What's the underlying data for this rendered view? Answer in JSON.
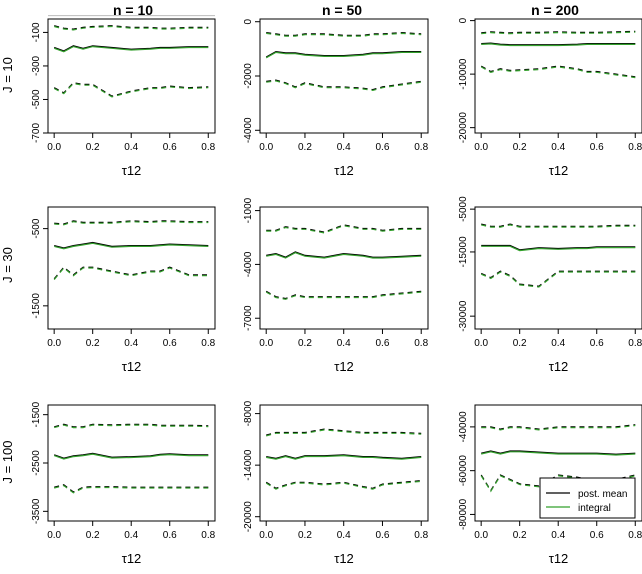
{
  "chart_data": {
    "type": "line",
    "column_titles": [
      "n = 10",
      "n = 50",
      "n = 200"
    ],
    "row_titles": [
      "J = 10",
      "J = 30",
      "J = 100"
    ],
    "xlabel": "τ12",
    "xlim": [
      0,
      0.8
    ],
    "x_ticks": [
      0.0,
      0.2,
      0.4,
      0.6,
      0.8
    ],
    "x_tick_labels": [
      "0.0",
      "0.2",
      "0.4",
      "0.6",
      "0.8"
    ],
    "x": [
      0.0,
      0.05,
      0.1,
      0.15,
      0.2,
      0.3,
      0.4,
      0.5,
      0.55,
      0.6,
      0.7,
      0.8
    ],
    "legend": {
      "position": "bottom-right",
      "entries": [
        {
          "name": "post. mean",
          "color": "#000000"
        },
        {
          "name": "integral",
          "color": "#33a02c"
        }
      ]
    },
    "colors": {
      "post_mean": "#000000",
      "integral": "#33a02c",
      "reference": "#bbbbbb"
    },
    "panels": [
      {
        "row": 0,
        "col": 0,
        "ylim": [
          -700,
          -20
        ],
        "y_ticks": [
          -100,
          -300,
          -500,
          -700
        ],
        "y_tick_labels": [
          "-100",
          "-300",
          "-500",
          "-700"
        ],
        "reference_line": 0,
        "series": {
          "mean": [
            -190,
            -210,
            -180,
            -195,
            -180,
            -190,
            -200,
            -195,
            -190,
            -190,
            -185,
            -185
          ],
          "lower": [
            -430,
            -460,
            -400,
            -410,
            -410,
            -480,
            -450,
            -430,
            -430,
            -420,
            -430,
            -425
          ],
          "upper": [
            -60,
            -75,
            -80,
            -70,
            -65,
            -60,
            -70,
            -70,
            -75,
            -75,
            -70,
            -70
          ]
        }
      },
      {
        "row": 0,
        "col": 1,
        "ylim": [
          -4100,
          100
        ],
        "y_ticks": [
          0,
          -2000,
          -4000
        ],
        "y_tick_labels": [
          "0",
          "-2000",
          "-4000"
        ],
        "series": {
          "mean": [
            -1300,
            -1100,
            -1150,
            -1150,
            -1200,
            -1250,
            -1250,
            -1200,
            -1150,
            -1150,
            -1100,
            -1100
          ],
          "lower": [
            -2200,
            -2150,
            -2250,
            -2400,
            -2250,
            -2400,
            -2400,
            -2450,
            -2500,
            -2400,
            -2300,
            -2200
          ],
          "upper": [
            -400,
            -450,
            -500,
            -500,
            -450,
            -450,
            -500,
            -500,
            -450,
            -450,
            -400,
            -450
          ]
        }
      },
      {
        "row": 0,
        "col": 2,
        "ylim": [
          -21000,
          300
        ],
        "y_ticks": [
          0,
          -10000,
          -20000
        ],
        "y_tick_labels": [
          "0",
          "-10000",
          "-20000"
        ],
        "series": {
          "mean": [
            -4300,
            -4200,
            -4400,
            -4500,
            -4500,
            -4500,
            -4500,
            -4400,
            -4300,
            -4300,
            -4300,
            -4300
          ],
          "lower": [
            -8500,
            -9500,
            -9000,
            -9300,
            -9200,
            -9000,
            -8500,
            -9000,
            -9500,
            -9500,
            -10000,
            -10500
          ],
          "upper": [
            -2300,
            -2100,
            -2200,
            -2300,
            -2200,
            -2200,
            -2100,
            -2200,
            -2200,
            -2200,
            -2100,
            -2000
          ]
        }
      },
      {
        "row": 1,
        "col": 0,
        "ylim": [
          -1800,
          -220
        ],
        "y_ticks": [
          -500,
          -1500
        ],
        "y_tick_labels": [
          "-500",
          "-1500"
        ],
        "series": {
          "mean": [
            -720,
            -750,
            -720,
            -700,
            -680,
            -730,
            -720,
            -720,
            -710,
            -700,
            -710,
            -720
          ],
          "lower": [
            -1150,
            -1000,
            -1100,
            -1000,
            -1000,
            -1050,
            -1100,
            -1050,
            -1050,
            -1000,
            -1100,
            -1100
          ],
          "upper": [
            -430,
            -440,
            -400,
            -420,
            -420,
            -420,
            -400,
            -410,
            -400,
            -400,
            -410,
            -410
          ]
        }
      },
      {
        "row": 1,
        "col": 1,
        "ylim": [
          -7600,
          -800
        ],
        "y_ticks": [
          -1000,
          -4000,
          -7000
        ],
        "y_tick_labels": [
          "-1000",
          "-4000",
          "-7000"
        ],
        "series": {
          "mean": [
            -3500,
            -3400,
            -3600,
            -3300,
            -3500,
            -3600,
            -3400,
            -3500,
            -3600,
            -3600,
            -3550,
            -3500
          ],
          "lower": [
            -5500,
            -5800,
            -5900,
            -5700,
            -5800,
            -5800,
            -5800,
            -5800,
            -5800,
            -5700,
            -5600,
            -5500
          ],
          "upper": [
            -2100,
            -2100,
            -1900,
            -2000,
            -2000,
            -2200,
            -1800,
            -2000,
            -2000,
            -2100,
            -2000,
            -2000
          ]
        }
      },
      {
        "row": 1,
        "col": 2,
        "ylim": [
          -33000,
          -4500
        ],
        "y_ticks": [
          -5000,
          -15000,
          -30000
        ],
        "y_tick_labels": [
          "-5000",
          "-15000",
          "-30000"
        ],
        "series": {
          "mean": [
            -13500,
            -13500,
            -13500,
            -13500,
            -14500,
            -14000,
            -14200,
            -14000,
            -14000,
            -13800,
            -13800,
            -13800
          ],
          "lower": [
            -20000,
            -21000,
            -19500,
            -20500,
            -22500,
            -23000,
            -19500,
            -19500,
            -19500,
            -19500,
            -19500,
            -19500
          ],
          "upper": [
            -8500,
            -9000,
            -9000,
            -8500,
            -9000,
            -9000,
            -9000,
            -9000,
            -9000,
            -9000,
            -8800,
            -8800
          ]
        }
      },
      {
        "row": 2,
        "col": 0,
        "ylim": [
          -3700,
          -1300
        ],
        "y_ticks": [
          -1500,
          -2500,
          -3500
        ],
        "y_tick_labels": [
          "-1500",
          "-2500",
          "-3500"
        ],
        "series": {
          "mean": [
            -2330,
            -2400,
            -2350,
            -2330,
            -2300,
            -2380,
            -2370,
            -2350,
            -2320,
            -2310,
            -2330,
            -2330
          ],
          "lower": [
            -3000,
            -2950,
            -3100,
            -3000,
            -2990,
            -2990,
            -3000,
            -3000,
            -3000,
            -3000,
            -3000,
            -3000
          ],
          "upper": [
            -1750,
            -1700,
            -1750,
            -1750,
            -1700,
            -1710,
            -1700,
            -1700,
            -1720,
            -1720,
            -1720,
            -1730
          ]
        }
      },
      {
        "row": 2,
        "col": 1,
        "ylim": [
          -20500,
          -7000
        ],
        "y_ticks": [
          -8000,
          -14000,
          -20000
        ],
        "y_tick_labels": [
          "-8000",
          "-14000",
          "-20000"
        ],
        "series": {
          "mean": [
            -13000,
            -13200,
            -12900,
            -13200,
            -12900,
            -12900,
            -12800,
            -13000,
            -13000,
            -13100,
            -13200,
            -13000
          ],
          "lower": [
            -16000,
            -16700,
            -16300,
            -16000,
            -16000,
            -16200,
            -16000,
            -16500,
            -16700,
            -16200,
            -16000,
            -15800
          ],
          "upper": [
            -10500,
            -10200,
            -10200,
            -10200,
            -10200,
            -9800,
            -10000,
            -10200,
            -10200,
            -10200,
            -10200,
            -10300
          ]
        }
      },
      {
        "row": 2,
        "col": 2,
        "ylim": [
          -83000,
          -30000
        ],
        "y_ticks": [
          -40000,
          -60000,
          -80000
        ],
        "y_tick_labels": [
          "-40000",
          "-60000",
          "-80000"
        ],
        "series": {
          "mean": [
            -52000,
            -51000,
            -52000,
            -51000,
            -51000,
            -51500,
            -52000,
            -52000,
            -52000,
            -52000,
            -52500,
            -52000
          ],
          "lower": [
            -62000,
            -69000,
            -62000,
            -64000,
            -66000,
            -67000,
            -62000,
            -63000,
            -64000,
            -64000,
            -64000,
            -62000
          ],
          "upper": [
            -40000,
            -40000,
            -41000,
            -40000,
            -40000,
            -41000,
            -40000,
            -40000,
            -40000,
            -40000,
            -40000,
            -39000
          ]
        }
      }
    ]
  }
}
